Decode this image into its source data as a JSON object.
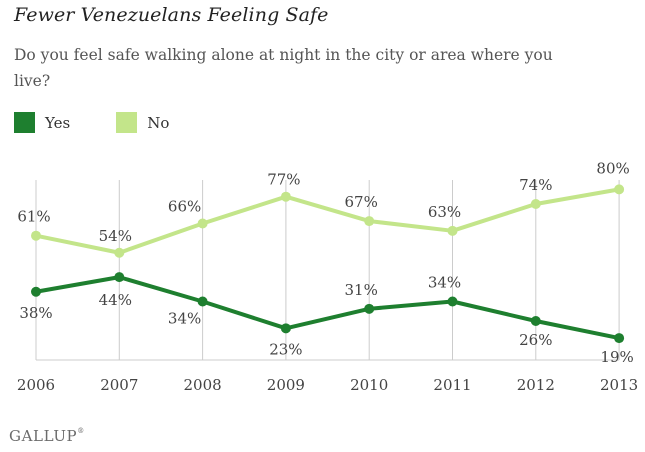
{
  "brand": {
    "name": "GALLUP",
    "trademark": "®"
  },
  "colors": {
    "yes": "#1e7f2f",
    "no": "#c3e58a",
    "axis": "#cccccc",
    "text": "#444444"
  },
  "chart_data": {
    "type": "line",
    "title": "Fewer Venezuelans Feeling Safe",
    "subtitle": "Do you feel safe walking alone at night in the city or area where you live?",
    "x": [
      "2006",
      "2007",
      "2008",
      "2009",
      "2010",
      "2011",
      "2012",
      "2013"
    ],
    "series": [
      {
        "name": "Yes",
        "color": "#1e7f2f",
        "values": [
          38,
          44,
          34,
          23,
          31,
          34,
          26,
          19
        ],
        "labels": [
          "38%",
          "44%",
          "34%",
          "23%",
          "31%",
          "34%",
          "26%",
          "19%"
        ]
      },
      {
        "name": "No",
        "color": "#c3e58a",
        "values": [
          61,
          54,
          66,
          77,
          67,
          63,
          74,
          80
        ],
        "labels": [
          "61%",
          "54%",
          "66%",
          "77%",
          "67%",
          "63%",
          "74%",
          "80%"
        ]
      }
    ],
    "ylim": [
      10,
      90
    ],
    "legend": "top-left",
    "grid": "vertical"
  }
}
